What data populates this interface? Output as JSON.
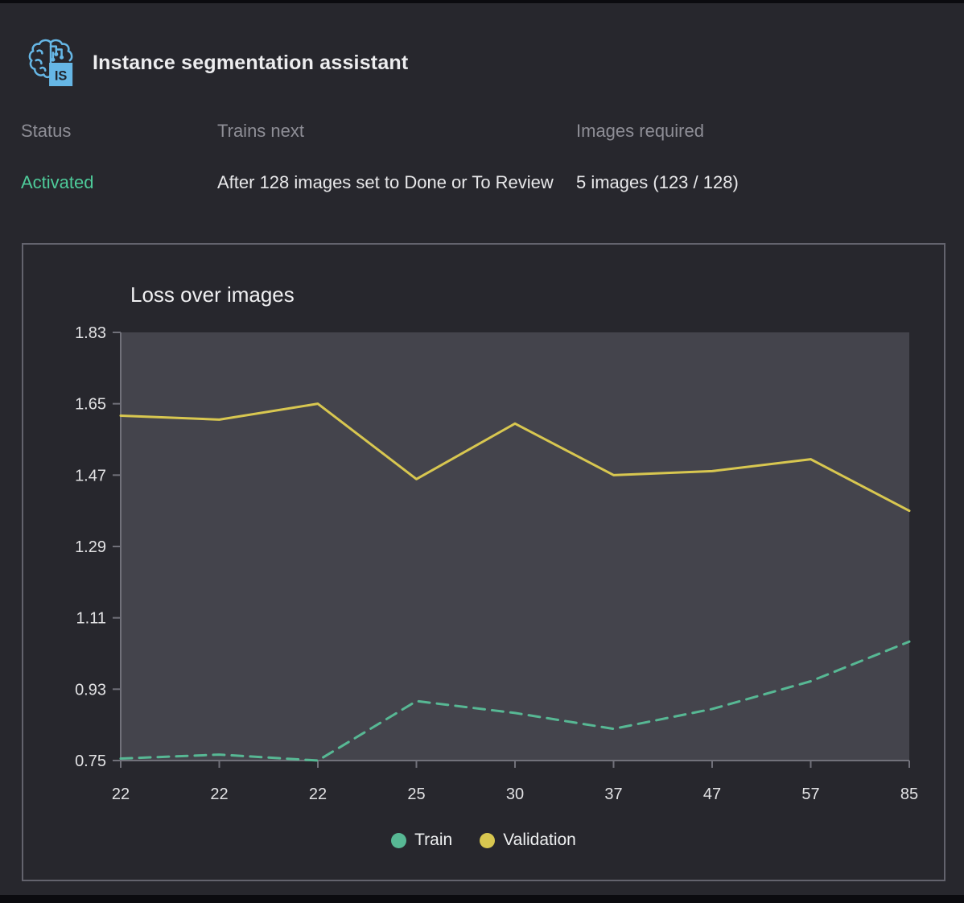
{
  "header": {
    "app_title": "Instance segmentation assistant",
    "icon_label": "IS"
  },
  "meta": {
    "status_label": "Status",
    "status_value": "Activated",
    "trains_next_label": "Trains next",
    "trains_next_value": "After 128 images set to Done or To Review",
    "images_required_label": "Images required",
    "images_required_value": "5 images (123 / 128)"
  },
  "chart_data": {
    "type": "line",
    "title": "Loss over images",
    "categories": [
      "22",
      "22",
      "22",
      "25",
      "30",
      "37",
      "47",
      "57",
      "85"
    ],
    "series": [
      {
        "name": "Train",
        "color": "#57b894",
        "style": "dashed",
        "values": [
          0.755,
          0.765,
          0.75,
          0.9,
          0.87,
          0.83,
          0.88,
          0.95,
          1.05
        ]
      },
      {
        "name": "Validation",
        "color": "#d8c750",
        "style": "solid",
        "values": [
          1.62,
          1.61,
          1.65,
          1.46,
          1.6,
          1.47,
          1.48,
          1.51,
          1.38
        ]
      }
    ],
    "ylim": [
      0.75,
      1.83
    ],
    "yticks": [
      1.83,
      1.65,
      1.47,
      1.29,
      1.11,
      0.93,
      0.75
    ],
    "grid": false,
    "legend_position": "bottom",
    "xlabel": "",
    "ylabel": ""
  },
  "colors": {
    "page_bg": "#27272d",
    "plot_bg": "#44444c",
    "panel_border": "#63636d",
    "axis": "#71717a",
    "train_line": "#57b894",
    "validation_line": "#d8c750",
    "status_green": "#4ecb9a",
    "icon_blue": "#66b7e6",
    "label_gray": "#8e8e96",
    "text_light": "#eaeaec"
  }
}
